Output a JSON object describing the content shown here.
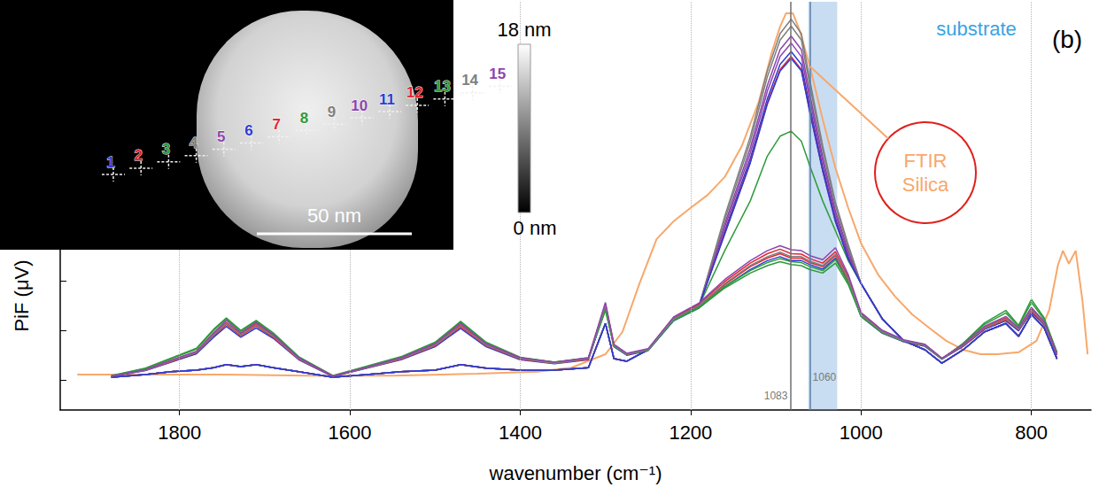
{
  "chart_data": {
    "type": "line",
    "panel_label": "(b)",
    "x_label": "wavenumber (cm⁻¹)",
    "y_label": "PiF (μV)",
    "xlim": [
      1940,
      730
    ],
    "xticks": [
      1800,
      1600,
      1400,
      1200,
      1000,
      800
    ],
    "ylim": [
      -0.6,
      7.6
    ],
    "yticks": [
      0,
      1,
      2
    ],
    "tick_labels": "x",
    "grid": "x",
    "reference_lines": [
      1083,
      1060
    ],
    "band": {
      "range": [
        1028,
        1062
      ],
      "label": "substrate"
    },
    "x": [
      1880,
      1840,
      1810,
      1780,
      1760,
      1745,
      1728,
      1710,
      1690,
      1660,
      1620,
      1580,
      1540,
      1500,
      1470,
      1440,
      1400,
      1360,
      1320,
      1300,
      1290,
      1275,
      1250,
      1220,
      1190,
      1160,
      1130,
      1110,
      1095,
      1082,
      1070,
      1060,
      1045,
      1030,
      1015,
      1000,
      975,
      950,
      925,
      905,
      880,
      855,
      830,
      815,
      800,
      785,
      770
    ],
    "series": [
      {
        "name": "FTIR Silica",
        "color": "#f7a86b",
        "x": [
          1920,
          1850,
          1750,
          1650,
          1550,
          1450,
          1380,
          1340,
          1300,
          1280,
          1260,
          1240,
          1220,
          1200,
          1180,
          1160,
          1140,
          1120,
          1105,
          1095,
          1088,
          1080,
          1072,
          1060,
          1045,
          1030,
          1015,
          1000,
          980,
          960,
          940,
          920,
          900,
          880,
          860,
          840,
          815,
          794,
          779,
          769,
          763,
          756,
          748,
          740,
          734
        ],
        "values": [
          0.11,
          0.11,
          0.11,
          0.09,
          0.09,
          0.13,
          0.17,
          0.25,
          0.52,
          0.97,
          1.94,
          2.83,
          3.19,
          3.46,
          3.72,
          4.08,
          4.7,
          5.59,
          6.57,
          7.1,
          7.37,
          7.37,
          7.02,
          6.3,
          5.24,
          4.26,
          3.46,
          2.75,
          2.12,
          1.68,
          1.32,
          1.05,
          0.79,
          0.61,
          0.52,
          0.52,
          0.56,
          0.79,
          1.41,
          2.3,
          2.6,
          2.34,
          2.6,
          1.59,
          0.52
        ]
      },
      {
        "name": "1",
        "color": "#2a3cd6",
        "values": [
          0.07,
          0.19,
          0.36,
          0.53,
          0.86,
          1.08,
          0.86,
          1.05,
          0.84,
          0.41,
          0.07,
          0.24,
          0.41,
          0.67,
          1.04,
          0.67,
          0.41,
          0.33,
          0.41,
          1.44,
          0.67,
          0.5,
          0.59,
          1.19,
          1.45,
          1.88,
          2.22,
          2.4,
          2.48,
          2.4,
          2.4,
          2.32,
          2.23,
          2.45,
          1.97,
          1.28,
          0.94,
          0.77,
          0.68,
          0.42,
          0.68,
          1.02,
          1.19,
          0.99,
          1.37,
          1.11,
          0.5
        ]
      },
      {
        "name": "2",
        "color": "#e3262f",
        "values": [
          0.08,
          0.2,
          0.37,
          0.55,
          0.89,
          1.12,
          0.89,
          1.09,
          0.86,
          0.42,
          0.08,
          0.25,
          0.42,
          0.69,
          1.07,
          0.69,
          0.42,
          0.34,
          0.42,
          1.48,
          0.69,
          0.51,
          0.6,
          1.22,
          1.49,
          1.92,
          2.28,
          2.45,
          2.54,
          2.45,
          2.45,
          2.36,
          2.28,
          2.5,
          2.01,
          1.31,
          0.96,
          0.78,
          0.69,
          0.43,
          0.69,
          1.04,
          1.21,
          1.01,
          1.39,
          1.13,
          0.51
        ]
      },
      {
        "name": "3",
        "color": "#2e9a3a",
        "values": [
          0.09,
          0.24,
          0.44,
          0.64,
          1.02,
          1.25,
          1.0,
          1.2,
          0.95,
          0.47,
          0.09,
          0.28,
          0.47,
          0.76,
          1.18,
          0.76,
          0.46,
          0.36,
          0.45,
          1.4,
          0.68,
          0.52,
          0.6,
          1.2,
          1.45,
          1.85,
          2.15,
          2.3,
          2.38,
          2.32,
          2.3,
          2.22,
          2.15,
          2.35,
          1.92,
          1.28,
          0.95,
          0.78,
          0.7,
          0.42,
          0.74,
          1.15,
          1.4,
          1.1,
          1.62,
          1.25,
          0.56
        ]
      },
      {
        "name": "4",
        "color": "#7f7f7f",
        "values": [
          0.06,
          0.11,
          0.17,
          0.2,
          0.25,
          0.31,
          0.27,
          0.31,
          0.25,
          0.17,
          0.06,
          0.11,
          0.17,
          0.2,
          0.31,
          0.24,
          0.2,
          0.2,
          0.25,
          1.14,
          0.43,
          0.38,
          0.61,
          1.23,
          1.5,
          3.29,
          4.89,
          6.21,
          6.96,
          7.25,
          6.96,
          6.02,
          4.71,
          3.57,
          2.72,
          1.94,
          1.23,
          0.79,
          0.61,
          0.34,
          0.61,
          0.97,
          1.14,
          0.88,
          1.32,
          1.05,
          0.43
        ]
      },
      {
        "name": "5",
        "color": "#8e44ad",
        "values": [
          0.06,
          0.11,
          0.17,
          0.2,
          0.25,
          0.31,
          0.27,
          0.31,
          0.25,
          0.17,
          0.06,
          0.11,
          0.17,
          0.2,
          0.31,
          0.24,
          0.2,
          0.2,
          0.25,
          1.14,
          0.43,
          0.38,
          0.61,
          1.23,
          1.5,
          3.13,
          4.66,
          5.92,
          6.64,
          6.91,
          6.64,
          5.74,
          4.48,
          3.4,
          2.6,
          1.94,
          1.23,
          0.79,
          0.61,
          0.34,
          0.61,
          0.97,
          1.14,
          0.88,
          1.32,
          1.05,
          0.43
        ]
      },
      {
        "name": "6",
        "color": "#2a3cd6",
        "values": [
          0.06,
          0.11,
          0.17,
          0.2,
          0.25,
          0.31,
          0.27,
          0.31,
          0.25,
          0.17,
          0.06,
          0.11,
          0.17,
          0.2,
          0.31,
          0.24,
          0.2,
          0.2,
          0.25,
          1.14,
          0.43,
          0.38,
          0.61,
          1.23,
          1.5,
          2.99,
          4.45,
          5.65,
          6.34,
          6.6,
          6.34,
          5.48,
          4.28,
          3.25,
          2.48,
          1.94,
          1.23,
          0.79,
          0.61,
          0.34,
          0.61,
          0.97,
          1.14,
          0.88,
          1.32,
          1.05,
          0.43
        ]
      },
      {
        "name": "7",
        "color": "#e3262f",
        "values": [
          0.06,
          0.11,
          0.17,
          0.2,
          0.25,
          0.31,
          0.27,
          0.31,
          0.25,
          0.17,
          0.06,
          0.11,
          0.17,
          0.2,
          0.31,
          0.24,
          0.2,
          0.2,
          0.25,
          1.14,
          0.43,
          0.38,
          0.61,
          1.23,
          1.5,
          2.95,
          4.38,
          5.57,
          6.24,
          6.5,
          6.24,
          5.4,
          4.22,
          3.2,
          2.44,
          1.94,
          1.23,
          0.79,
          0.61,
          0.34,
          0.61,
          0.97,
          1.14,
          0.88,
          1.32,
          1.05,
          0.43
        ]
      },
      {
        "name": "8",
        "color": "#2e9a3a",
        "values": [
          0.06,
          0.11,
          0.17,
          0.2,
          0.25,
          0.31,
          0.27,
          0.31,
          0.25,
          0.17,
          0.06,
          0.11,
          0.17,
          0.2,
          0.31,
          0.24,
          0.2,
          0.2,
          0.25,
          1.14,
          0.43,
          0.38,
          0.61,
          1.23,
          1.5,
          2.6,
          3.6,
          4.5,
          4.9,
          5.0,
          4.8,
          4.3,
          3.6,
          3.0,
          2.4,
          1.94,
          1.23,
          0.79,
          0.61,
          0.34,
          0.61,
          0.97,
          1.14,
          0.88,
          1.32,
          1.05,
          0.43
        ]
      },
      {
        "name": "9",
        "color": "#7f7f7f",
        "values": [
          0.06,
          0.11,
          0.17,
          0.2,
          0.25,
          0.31,
          0.27,
          0.31,
          0.25,
          0.17,
          0.06,
          0.11,
          0.17,
          0.2,
          0.31,
          0.24,
          0.2,
          0.2,
          0.25,
          1.14,
          0.43,
          0.38,
          0.61,
          1.23,
          1.5,
          3.22,
          4.79,
          6.09,
          6.83,
          7.11,
          6.83,
          5.91,
          4.62,
          3.5,
          2.67,
          1.94,
          1.23,
          0.79,
          0.61,
          0.34,
          0.61,
          0.97,
          1.14,
          0.88,
          1.32,
          1.05,
          0.43
        ]
      },
      {
        "name": "10",
        "color": "#8e44ad",
        "values": [
          0.06,
          0.11,
          0.17,
          0.2,
          0.25,
          0.31,
          0.27,
          0.31,
          0.25,
          0.17,
          0.06,
          0.11,
          0.17,
          0.2,
          0.31,
          0.24,
          0.2,
          0.2,
          0.25,
          1.14,
          0.43,
          0.38,
          0.61,
          1.23,
          1.5,
          3.07,
          4.56,
          5.8,
          6.5,
          6.77,
          6.5,
          5.62,
          4.4,
          3.34,
          2.54,
          1.94,
          1.23,
          0.79,
          0.61,
          0.34,
          0.61,
          0.97,
          1.14,
          0.88,
          1.32,
          1.05,
          0.43
        ]
      },
      {
        "name": "11",
        "color": "#2a3cd6",
        "values": [
          0.06,
          0.11,
          0.17,
          0.2,
          0.25,
          0.31,
          0.27,
          0.31,
          0.25,
          0.17,
          0.06,
          0.11,
          0.17,
          0.2,
          0.31,
          0.24,
          0.2,
          0.2,
          0.25,
          1.14,
          0.43,
          0.38,
          0.61,
          1.23,
          1.5,
          2.93,
          4.36,
          5.54,
          6.21,
          6.46,
          6.21,
          5.37,
          4.2,
          3.18,
          2.43,
          1.94,
          1.23,
          0.79,
          0.61,
          0.34,
          0.61,
          0.97,
          1.14,
          0.88,
          1.32,
          1.05,
          0.43
        ]
      },
      {
        "name": "12",
        "color": "#e3262f",
        "values": [
          0.08,
          0.21,
          0.39,
          0.57,
          0.93,
          1.16,
          0.93,
          1.13,
          0.9,
          0.44,
          0.08,
          0.25,
          0.44,
          0.71,
          1.11,
          0.71,
          0.44,
          0.35,
          0.44,
          1.53,
          0.71,
          0.53,
          0.62,
          1.25,
          1.53,
          1.98,
          2.35,
          2.54,
          2.63,
          2.54,
          2.53,
          2.44,
          2.35,
          2.58,
          2.07,
          1.34,
          0.98,
          0.8,
          0.71,
          0.44,
          0.71,
          1.06,
          1.25,
          1.03,
          1.43,
          1.16,
          0.53
        ]
      },
      {
        "name": "13",
        "color": "#2e9a3a",
        "values": [
          0.09,
          0.23,
          0.43,
          0.62,
          1.0,
          1.23,
          0.98,
          1.18,
          0.93,
          0.46,
          0.09,
          0.27,
          0.46,
          0.75,
          1.16,
          0.75,
          0.45,
          0.36,
          0.44,
          1.42,
          0.69,
          0.52,
          0.6,
          1.21,
          1.47,
          1.88,
          2.2,
          2.36,
          2.44,
          2.38,
          2.36,
          2.28,
          2.2,
          2.42,
          1.96,
          1.3,
          0.96,
          0.79,
          0.71,
          0.43,
          0.73,
          1.12,
          1.35,
          1.08,
          1.56,
          1.22,
          0.55
        ]
      },
      {
        "name": "14",
        "color": "#7f7f7f",
        "values": [
          0.08,
          0.2,
          0.38,
          0.56,
          0.91,
          1.14,
          0.91,
          1.11,
          0.88,
          0.43,
          0.08,
          0.25,
          0.43,
          0.7,
          1.09,
          0.7,
          0.43,
          0.34,
          0.43,
          1.5,
          0.7,
          0.52,
          0.61,
          1.23,
          1.5,
          1.94,
          2.3,
          2.48,
          2.57,
          2.48,
          2.48,
          2.39,
          2.3,
          2.53,
          2.03,
          1.32,
          0.97,
          0.79,
          0.7,
          0.43,
          0.7,
          1.05,
          1.23,
          1.02,
          1.41,
          1.14,
          0.52
        ]
      },
      {
        "name": "15",
        "color": "#8e44ad",
        "values": [
          0.08,
          0.21,
          0.4,
          0.58,
          0.95,
          1.2,
          0.95,
          1.16,
          0.91,
          0.45,
          0.08,
          0.26,
          0.45,
          0.73,
          1.14,
          0.73,
          0.45,
          0.36,
          0.45,
          1.56,
          0.72,
          0.54,
          0.63,
          1.27,
          1.55,
          2.02,
          2.4,
          2.6,
          2.7,
          2.62,
          2.6,
          2.5,
          2.42,
          2.66,
          2.12,
          1.36,
          1.0,
          0.81,
          0.72,
          0.44,
          0.72,
          1.08,
          1.28,
          1.05,
          1.46,
          1.18,
          0.54
        ]
      }
    ],
    "inset": {
      "scale_bar": {
        "value": 50,
        "label": "50 nm"
      },
      "colorbar": {
        "range": [
          0,
          18
        ],
        "ticks": [
          {
            "value": 18,
            "label": "18 nm"
          },
          {
            "value": 0,
            "label": "0 nm"
          }
        ]
      }
    }
  }
}
